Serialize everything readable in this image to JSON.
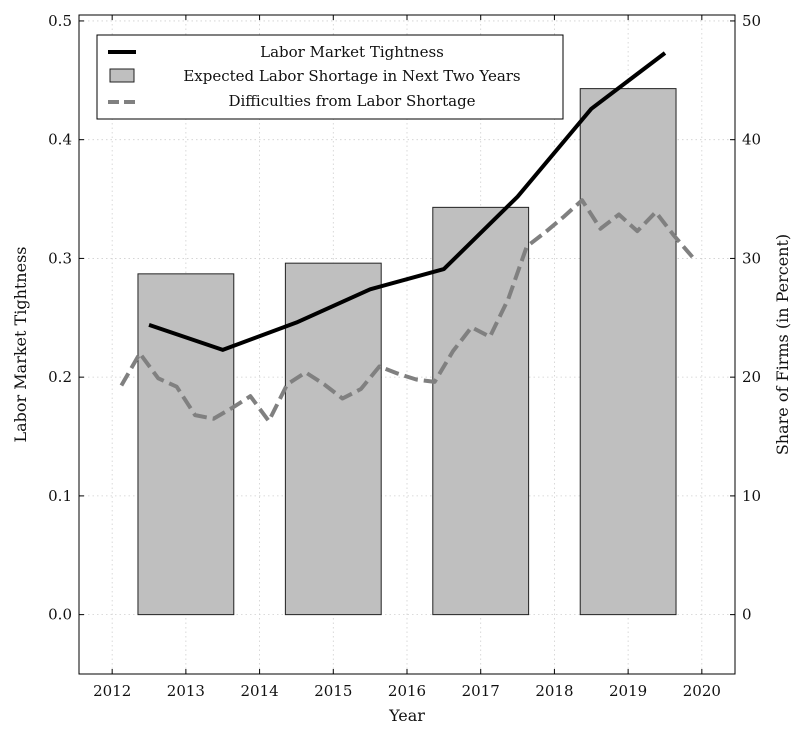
{
  "chart_data": {
    "type": "bar+line",
    "xlabel": "Year",
    "ylabel_left": "Labor Market Tightness",
    "ylabel_right": "Share of Firms (in Percent)",
    "x_range": [
      2011.55,
      2020.45
    ],
    "x_ticks": [
      "2012",
      "2013",
      "2014",
      "2015",
      "2016",
      "2017",
      "2018",
      "2019",
      "2020"
    ],
    "y_left_range": [
      -0.05,
      0.505
    ],
    "y_left_ticks": [
      "0.0",
      "0.1",
      "0.2",
      "0.3",
      "0.4",
      "0.5"
    ],
    "y_right_range": [
      -5,
      50.5
    ],
    "y_right_ticks": [
      "0",
      "10",
      "20",
      "30",
      "40",
      "50"
    ],
    "grid": true,
    "legend_position": "top-left",
    "legend": {
      "line": "Labor Market Tightness",
      "bars": "Expected Labor Shortage in Next Two Years",
      "dashed": "Difficulties from Labor Shortage"
    },
    "colors": {
      "line": "#000000",
      "bars": "#bfbfbf",
      "bar_edge": "#222222",
      "dashed": "#808080",
      "grid": "#cfcfcf"
    },
    "bars": [
      {
        "x_start": 2012.35,
        "x_end": 2013.65,
        "value": 28.7
      },
      {
        "x_start": 2014.35,
        "x_end": 2015.65,
        "value": 29.6
      },
      {
        "x_start": 2016.35,
        "x_end": 2017.65,
        "value": 34.3
      },
      {
        "x_start": 2018.35,
        "x_end": 2019.65,
        "value": 44.3
      }
    ],
    "line_series": {
      "x": [
        2012.5,
        2013.5,
        2014.5,
        2015.5,
        2016.5,
        2017.5,
        2018.5,
        2019.5
      ],
      "y": [
        0.244,
        0.223,
        0.246,
        0.274,
        0.291,
        0.352,
        0.426,
        0.473
      ]
    },
    "dashed_series": {
      "x": [
        2012.125,
        2012.375,
        2012.625,
        2012.875,
        2013.125,
        2013.375,
        2013.625,
        2013.875,
        2014.125,
        2014.375,
        2014.625,
        2014.875,
        2015.125,
        2015.375,
        2015.625,
        2015.875,
        2016.125,
        2016.375,
        2016.625,
        2016.875,
        2017.125,
        2017.375,
        2017.625,
        2017.875,
        2018.125,
        2018.375,
        2018.625,
        2018.875,
        2019.125,
        2019.375,
        2019.625,
        2019.875
      ],
      "y": [
        19.3,
        22.0,
        19.9,
        19.2,
        16.8,
        16.5,
        17.4,
        18.4,
        16.3,
        19.4,
        20.4,
        19.4,
        18.2,
        19.0,
        20.9,
        20.3,
        19.8,
        19.6,
        22.2,
        24.2,
        23.4,
        26.6,
        31.0,
        32.2,
        33.5,
        34.9,
        32.5,
        33.7,
        32.3,
        33.9,
        31.9,
        30.1
      ]
    }
  }
}
